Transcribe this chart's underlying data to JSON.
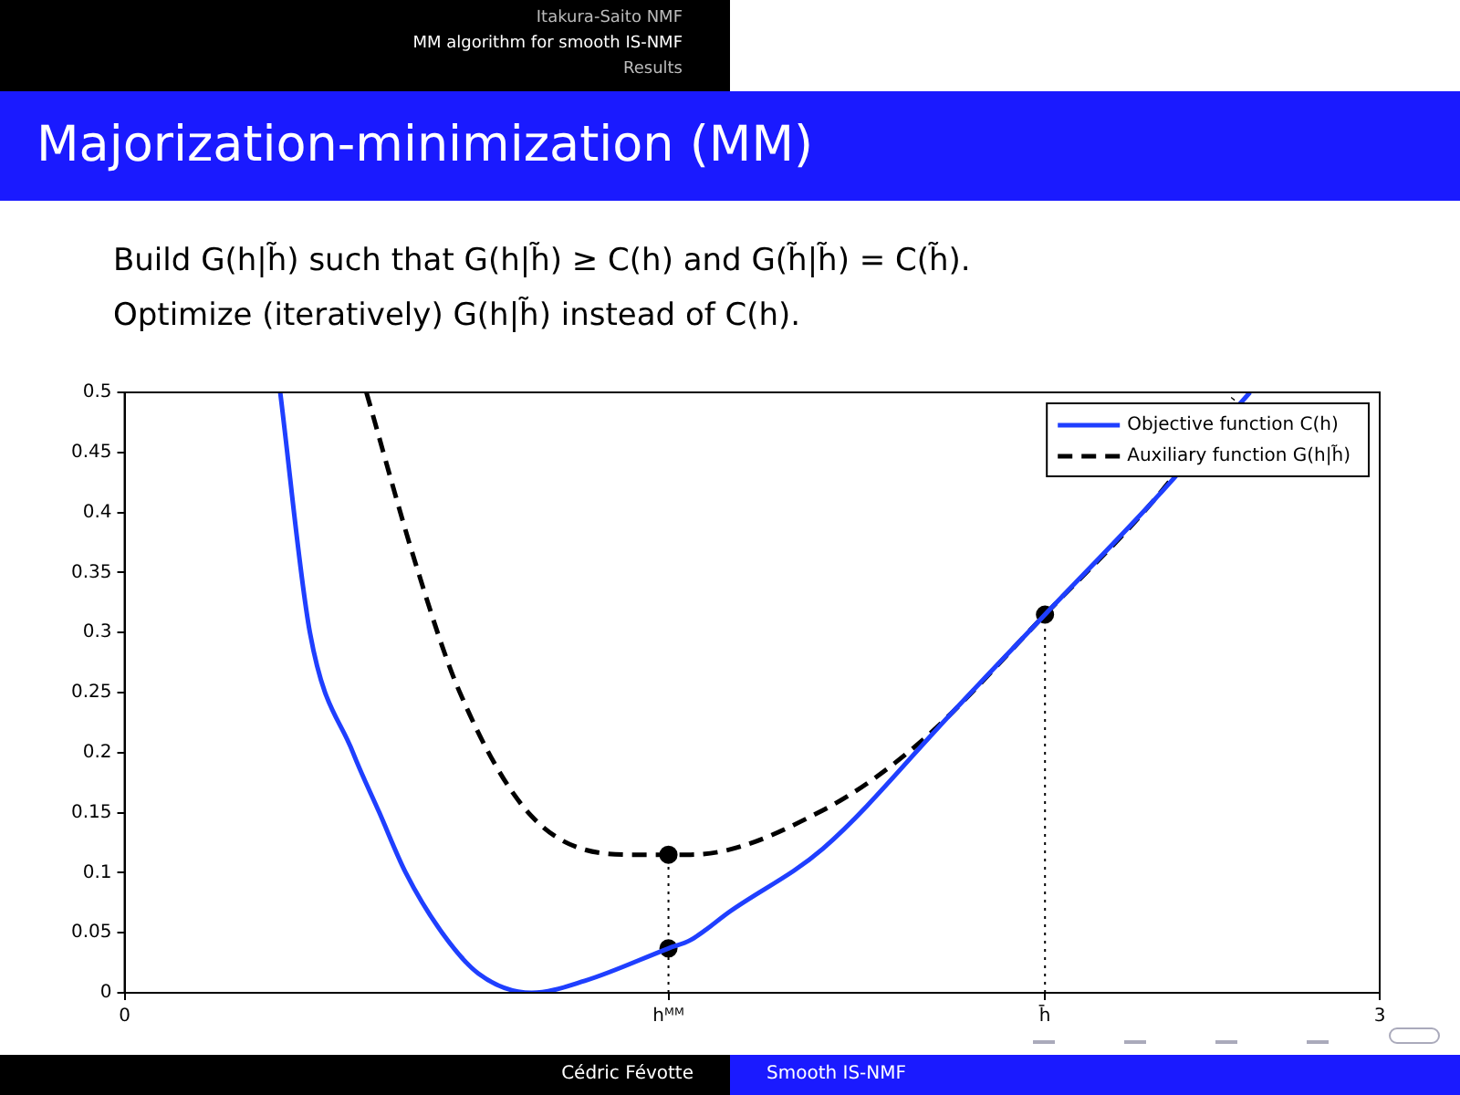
{
  "chart_data": {
    "type": "line",
    "title": "Majorization-minimization (MM)",
    "annotations": [
      "Itakura-Saito NMF",
      "MM algorithm for smooth IS-NMF",
      "Results",
      "Build G(h|h̃) such that G(h|h̃) ≥ C(h) and G(h̃|h̃) = C(h̃).",
      "Optimize (iteratively) G(h|h̃) instead of C(h).",
      "Cédric Févotte",
      "Smooth IS-NMF"
    ],
    "series": [
      {
        "name": "Objective function C(h)",
        "color": "#1f3fff",
        "line_style": "solid",
        "x": [
          0.372,
          0.443,
          0.546,
          0.609,
          0.672,
          0.759,
          0.846,
          0.973,
          1.1,
          1.3,
          1.353,
          1.448,
          1.669,
          1.985,
          2.2,
          2.46,
          2.69
        ],
        "values": [
          0.5,
          0.3,
          0.2,
          0.15,
          0.1,
          0.05,
          0.016,
          0,
          0.01,
          0.037,
          0.044,
          0.068,
          0.12,
          0.236,
          0.315,
          0.41,
          0.5
        ]
      },
      {
        "name": "Auxiliary function G(h|h̃)",
        "color": "#000000",
        "line_style": "dashed",
        "x": [
          0.578,
          0.696,
          0.799,
          0.973,
          1.21,
          1.3,
          1.353,
          1.669,
          1.906,
          2.2,
          2.46,
          2.65
        ],
        "values": [
          0.5,
          0.357,
          0.252,
          0.147,
          0.115,
          0.115,
          0.115,
          0.152,
          0.21,
          0.315,
          0.41,
          0.495
        ]
      },
      {
        "type": "line",
        "color": "#000000",
        "line_style": "dotted",
        "x": [
          1.3,
          1.3
        ],
        "values": [
          0,
          0.115
        ]
      },
      {
        "type": "line",
        "color": "#000000",
        "line_style": "dotted",
        "x": [
          2.2,
          2.2
        ],
        "values": [
          0,
          0.315
        ]
      },
      {
        "type": "scatter",
        "color": "#000000",
        "marker": "circle",
        "x": [
          1.3,
          1.3,
          2.2
        ],
        "values": [
          0.115,
          0.037,
          0.315
        ]
      }
    ],
    "xlim": [
      0,
      3
    ],
    "xticks": [
      0,
      {
        "value": 1.3,
        "label": "hᴹᴹ"
      },
      {
        "value": 2.2,
        "label": "h̄"
      },
      3
    ],
    "ylim": [
      0,
      0.5
    ],
    "yticks": [
      0,
      0.05,
      0.1,
      0.15,
      0.2,
      0.25,
      0.3,
      0.35,
      0.4,
      0.45,
      0.5
    ],
    "grid": false,
    "legend": "top right"
  }
}
